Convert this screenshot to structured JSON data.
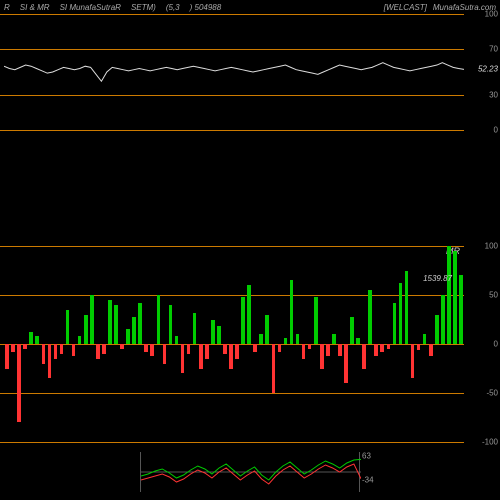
{
  "header": {
    "left1": "R",
    "left2": "SI & MR",
    "left3": "SI MunafaSutraR",
    "left4": "SETM)",
    "left5": "(5,3",
    "left6": ") 504988",
    "right1": "[WELCAST]",
    "right2": "MunafaSutra.com"
  },
  "colors": {
    "bg": "#000000",
    "orange": "#cc7a00",
    "green": "#00cc00",
    "red": "#ff3333",
    "white": "#dddddd",
    "grid": "#333333",
    "text": "#999999"
  },
  "top_panel": {
    "type": "line",
    "ylim": [
      0,
      100
    ],
    "gridlines": [
      {
        "y": 100,
        "color": "#cc7a00"
      },
      {
        "y": 70,
        "color": "#cc7a00"
      },
      {
        "y": 30,
        "color": "#cc7a00"
      },
      {
        "y": 0,
        "color": "#cc7a00"
      }
    ],
    "labels": [
      {
        "y": 100,
        "text": "100"
      },
      {
        "y": 70,
        "text": "70"
      },
      {
        "y": 30,
        "text": "30"
      },
      {
        "y": 0,
        "text": "0"
      }
    ],
    "current_value": {
      "y": 52.23,
      "text": "52.23",
      "color": "#dddddd"
    },
    "line_color": "#dddddd",
    "points": [
      55,
      53,
      52,
      54,
      56,
      55,
      53,
      51,
      49,
      50,
      52,
      54,
      53,
      52,
      53,
      55,
      54,
      48,
      42,
      50,
      54,
      53,
      52,
      51,
      52,
      53,
      52,
      51,
      52,
      53,
      54,
      53,
      52,
      53,
      54,
      55,
      54,
      53,
      52,
      51,
      52,
      53,
      54,
      53,
      52,
      51,
      50,
      51,
      52,
      53,
      54,
      55,
      56,
      54,
      52,
      51,
      50,
      49,
      48,
      50,
      52,
      54,
      56,
      55,
      54,
      53,
      52,
      53,
      54,
      56,
      58,
      56,
      54,
      53,
      52,
      51,
      52,
      53,
      54,
      55,
      56,
      58,
      56,
      54,
      53,
      52.23
    ]
  },
  "mid_panel": {
    "type": "bar",
    "label": "MR",
    "price_label": "1539.87",
    "ylim": [
      -100,
      100
    ],
    "gridlines": [
      {
        "y": 100,
        "color": "#cc7a00"
      },
      {
        "y": 50,
        "color": "#cc7a00"
      },
      {
        "y": 0,
        "color": "#cc7a00"
      },
      {
        "y": -50,
        "color": "#cc7a00"
      },
      {
        "y": -100,
        "color": "#cc7a00"
      }
    ],
    "labels": [
      {
        "y": 100,
        "text": "100"
      },
      {
        "y": 50,
        "text": "50"
      },
      {
        "y": 0,
        "text": "0"
      },
      {
        "y": -50,
        "text": "-50"
      },
      {
        "y": -100,
        "text": "-100"
      }
    ],
    "bars": [
      -25,
      -8,
      -80,
      -5,
      12,
      8,
      -20,
      -35,
      -15,
      -10,
      35,
      -12,
      8,
      30,
      50,
      -15,
      -10,
      45,
      40,
      -5,
      15,
      28,
      42,
      -8,
      -12,
      50,
      -20,
      40,
      8,
      -30,
      -10,
      32,
      -25,
      -15,
      25,
      18,
      -10,
      -25,
      -15,
      48,
      60,
      -8,
      10,
      30,
      -50,
      -8,
      6,
      65,
      10,
      -15,
      -5,
      48,
      -25,
      -12,
      10,
      -12,
      -40,
      28,
      6,
      -25,
      55,
      -12,
      -8,
      -5,
      42,
      62,
      75,
      -35,
      -6,
      10,
      -12,
      30,
      50,
      100,
      95,
      70
    ],
    "bar_colors": {
      "pos": "#00cc00",
      "neg": "#ff3333"
    }
  },
  "bot_panel": {
    "type": "line",
    "labels_right": [
      {
        "text": "63",
        "color": "#999999"
      },
      {
        "text": "-34",
        "color": "#999999"
      }
    ],
    "ylim": [
      -100,
      100
    ],
    "green_line": [
      -20,
      -10,
      5,
      15,
      -5,
      -30,
      -15,
      10,
      30,
      15,
      -10,
      20,
      40,
      10,
      -20,
      5,
      25,
      -15,
      -40,
      0,
      30,
      50,
      20,
      -10,
      10,
      35,
      55,
      40,
      20,
      45,
      60,
      63
    ],
    "red_line": [
      -40,
      -30,
      -20,
      -10,
      -25,
      -50,
      -35,
      -10,
      10,
      -5,
      -30,
      0,
      20,
      -10,
      -40,
      -15,
      5,
      -35,
      -60,
      -20,
      10,
      30,
      0,
      -30,
      -10,
      15,
      35,
      20,
      0,
      25,
      40,
      -34
    ],
    "hline": {
      "y": 0,
      "color": "#555555"
    }
  }
}
